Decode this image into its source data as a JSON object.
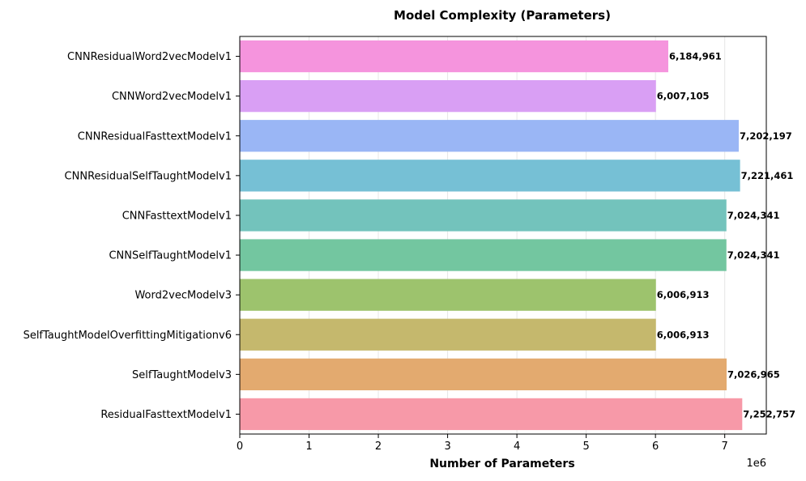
{
  "chart_data": {
    "type": "bar",
    "orientation": "horizontal",
    "title": "Model Complexity (Parameters)",
    "xlabel": "Number of Parameters",
    "ylabel": "",
    "x_scale_label": "1e6",
    "xlim": [
      0,
      7600000
    ],
    "x_ticks": [
      0,
      1000000,
      2000000,
      3000000,
      4000000,
      5000000,
      6000000,
      7000000
    ],
    "x_tick_labels": [
      "0",
      "1",
      "2",
      "3",
      "4",
      "5",
      "6",
      "7"
    ],
    "grid": "vertical",
    "categories": [
      "ResidualFasttextModelv1",
      "SelfTaughtModelv3",
      "SelfTaughtModelOverfittingMitigationv6",
      "Word2vecModelv3",
      "CNNSelfTaughtModelv1",
      "CNNFasttextModelv1",
      "CNNResidualSelfTaughtModelv1",
      "CNNResidualFasttextModelv1",
      "CNNWord2vecModelv1",
      "CNNResidualWord2vecModelv1"
    ],
    "values": [
      7252757,
      7026965,
      6006913,
      6006913,
      7024341,
      7024341,
      7221461,
      7202197,
      6007105,
      6184961
    ],
    "value_labels": [
      "7,252,757",
      "7,026,965",
      "6,006,913",
      "6,006,913",
      "7,024,341",
      "7,024,341",
      "7,221,461",
      "7,202,197",
      "6,007,105",
      "6,184,961"
    ],
    "colors": [
      "#f799a8",
      "#e3aa6f",
      "#c5b86d",
      "#9dc36d",
      "#73c6a0",
      "#73c3bc",
      "#76c0d5",
      "#9ab6f5",
      "#d99ff4",
      "#f594dd"
    ]
  }
}
